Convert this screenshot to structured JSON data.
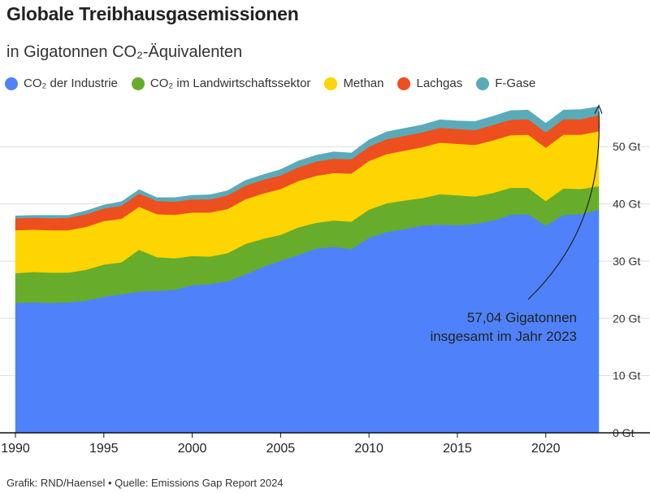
{
  "header": {
    "title": "Globale Treibhausgasemissionen",
    "subtitle": "in Gigatonnen CO₂-Äquivalenten"
  },
  "footer": {
    "credit": "Grafik: RND/Haensel • Quelle: Emissions Gap Report 2024"
  },
  "chart_data": {
    "type": "area",
    "stacked": true,
    "grid": true,
    "legend": "top",
    "x": [
      1990,
      1991,
      1992,
      1993,
      1994,
      1995,
      1996,
      1997,
      1998,
      1999,
      2000,
      2001,
      2002,
      2003,
      2004,
      2005,
      2006,
      2007,
      2008,
      2009,
      2010,
      2011,
      2012,
      2013,
      2014,
      2015,
      2016,
      2017,
      2018,
      2019,
      2020,
      2021,
      2022,
      2023
    ],
    "xlim": [
      1990,
      2023
    ],
    "ylim": [
      0,
      57
    ],
    "x_ticks": [
      1990,
      1995,
      2000,
      2005,
      2010,
      2015,
      2020
    ],
    "y_ticks": [
      0,
      10,
      20,
      30,
      40,
      50
    ],
    "y_tick_labels": [
      "0 Gt",
      "10 Gt",
      "20 Gt",
      "30 Gt",
      "40 Gt",
      "50 Gt"
    ],
    "series": [
      {
        "name": "CO₂ der Industrie",
        "color": "#4f82fa",
        "values": [
          22.7,
          22.8,
          22.7,
          22.8,
          23.1,
          23.8,
          24.2,
          24.7,
          24.8,
          25.0,
          25.8,
          26.0,
          26.5,
          27.7,
          29.0,
          30.1,
          31.1,
          32.2,
          32.5,
          32.1,
          34.1,
          35.1,
          35.6,
          36.2,
          36.4,
          36.3,
          36.5,
          37.1,
          38.1,
          38.2,
          36.2,
          38.1,
          38.2,
          39.0
        ]
      },
      {
        "name": "CO₂ im Landwirtschaftssektor",
        "color": "#67ad2b",
        "values": [
          5.2,
          5.3,
          5.3,
          5.2,
          5.4,
          5.6,
          5.6,
          7.3,
          5.9,
          5.5,
          5.1,
          4.8,
          4.9,
          5.3,
          4.9,
          4.5,
          4.8,
          4.5,
          4.6,
          4.8,
          4.9,
          5.0,
          5.0,
          4.8,
          5.3,
          5.2,
          4.8,
          4.8,
          4.7,
          4.6,
          4.3,
          4.6,
          4.4,
          4.1
        ]
      },
      {
        "name": "Methan",
        "color": "#ffd500",
        "values": [
          7.5,
          7.4,
          7.4,
          7.4,
          7.5,
          7.6,
          7.6,
          7.5,
          7.5,
          7.6,
          7.6,
          7.7,
          7.7,
          7.8,
          7.9,
          8.0,
          8.1,
          8.2,
          8.3,
          8.4,
          8.5,
          8.6,
          8.7,
          8.9,
          9.0,
          9.0,
          9.0,
          9.2,
          9.2,
          9.3,
          9.3,
          9.4,
          9.5,
          9.6
        ]
      },
      {
        "name": "Lachgas",
        "color": "#ee4f1f",
        "values": [
          2.1,
          2.1,
          2.1,
          2.2,
          2.2,
          2.2,
          2.3,
          2.3,
          2.3,
          2.3,
          2.3,
          2.3,
          2.4,
          2.4,
          2.4,
          2.4,
          2.4,
          2.5,
          2.5,
          2.5,
          2.5,
          2.6,
          2.6,
          2.6,
          2.6,
          2.6,
          2.6,
          2.7,
          2.7,
          2.7,
          2.7,
          2.7,
          2.7,
          2.8
        ]
      },
      {
        "name": "F-Gase",
        "color": "#5aabb9",
        "values": [
          0.4,
          0.4,
          0.5,
          0.4,
          0.6,
          0.6,
          0.7,
          0.7,
          0.6,
          0.7,
          0.7,
          0.8,
          0.8,
          0.9,
          0.9,
          1.0,
          1.1,
          1.1,
          1.2,
          1.1,
          1.2,
          1.3,
          1.3,
          1.3,
          1.4,
          1.4,
          1.5,
          1.5,
          1.6,
          1.6,
          1.6,
          1.6,
          1.7,
          1.5
        ]
      }
    ],
    "annotation": {
      "text_line1": "57,04 Gigatonnen",
      "text_line2": "insgesamt im Jahr 2023",
      "target_x": 2023,
      "target_y": 57.04
    }
  }
}
